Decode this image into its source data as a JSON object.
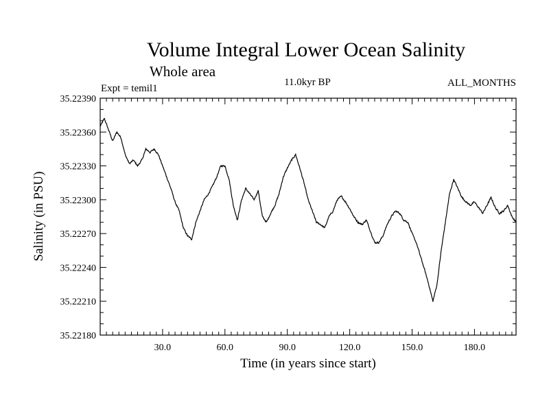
{
  "chart_data": {
    "type": "line",
    "title": "Volume Integral Lower Ocean Salinity",
    "subtitle": "Whole area",
    "expt_label": "Expt = temil1",
    "period_label": "11.0kyr BP",
    "months_label": "ALL_MONTHS",
    "xlabel": "Time (in years since start)",
    "ylabel": "Salinity (in PSU)",
    "xlim": [
      0,
      200
    ],
    "ylim": [
      35.2218,
      35.2239
    ],
    "xticks": [
      30,
      60,
      90,
      120,
      150,
      180
    ],
    "xtick_labels": [
      "30.0",
      "60.0",
      "90.0",
      "120.0",
      "150.0",
      "180.0"
    ],
    "yticks": [
      35.2218,
      35.2221,
      35.2224,
      35.2227,
      35.223,
      35.2233,
      35.2236,
      35.2239
    ],
    "ytick_labels": [
      "35.22180",
      "35.22210",
      "35.22240",
      "35.22270",
      "35.22300",
      "35.22330",
      "35.22360",
      "35.22390"
    ],
    "series": [
      {
        "name": "Salinity",
        "color": "#000000",
        "noise_amplitude": 6.5e-06,
        "x": [
          0,
          2,
          4,
          6,
          8,
          10,
          12,
          14,
          16,
          18,
          20,
          22,
          24,
          26,
          28,
          30,
          32,
          34,
          36,
          38,
          40,
          42,
          44,
          46,
          48,
          50,
          52,
          54,
          56,
          58,
          60,
          62,
          64,
          66,
          68,
          70,
          72,
          74,
          76,
          78,
          80,
          82,
          84,
          86,
          88,
          90,
          92,
          94,
          96,
          98,
          100,
          102,
          104,
          106,
          108,
          110,
          112,
          114,
          116,
          118,
          120,
          122,
          124,
          126,
          128,
          130,
          132,
          134,
          136,
          138,
          140,
          142,
          144,
          146,
          148,
          150,
          152,
          154,
          156,
          158,
          160,
          162,
          164,
          166,
          168,
          170,
          172,
          174,
          176,
          178,
          180,
          182,
          184,
          186,
          188,
          190,
          192,
          194,
          196,
          198,
          200
        ],
        "values": [
          35.22365,
          35.22372,
          35.22362,
          35.22352,
          35.2236,
          35.22355,
          35.2234,
          35.22332,
          35.22335,
          35.2233,
          35.22335,
          35.22345,
          35.22342,
          35.22345,
          35.2234,
          35.2233,
          35.2232,
          35.2231,
          35.22298,
          35.2229,
          35.22275,
          35.22268,
          35.22265,
          35.2228,
          35.2229,
          35.223,
          35.22305,
          35.22312,
          35.2232,
          35.2233,
          35.2233,
          35.22318,
          35.22295,
          35.22282,
          35.223,
          35.2231,
          35.22305,
          35.223,
          35.22308,
          35.22285,
          35.2228,
          35.22288,
          35.22295,
          35.22305,
          35.2232,
          35.22328,
          35.22335,
          35.2234,
          35.22328,
          35.22315,
          35.223,
          35.2229,
          35.2228,
          35.22278,
          35.22275,
          35.22285,
          35.2229,
          35.223,
          35.22303,
          35.22298,
          35.22292,
          35.22285,
          35.2228,
          35.22278,
          35.22282,
          35.22272,
          35.22262,
          35.22262,
          35.22268,
          35.22278,
          35.22285,
          35.2229,
          35.22288,
          35.22282,
          35.2228,
          35.2227,
          35.22262,
          35.2225,
          35.22238,
          35.22225,
          35.2221,
          35.22225,
          35.22255,
          35.2228,
          35.22305,
          35.22318,
          35.2231,
          35.22302,
          35.22298,
          35.22295,
          35.22298,
          35.22293,
          35.22288,
          35.22295,
          35.22302,
          35.22293,
          35.22288,
          35.2229,
          35.22295,
          35.22285,
          35.2228
        ]
      }
    ]
  }
}
